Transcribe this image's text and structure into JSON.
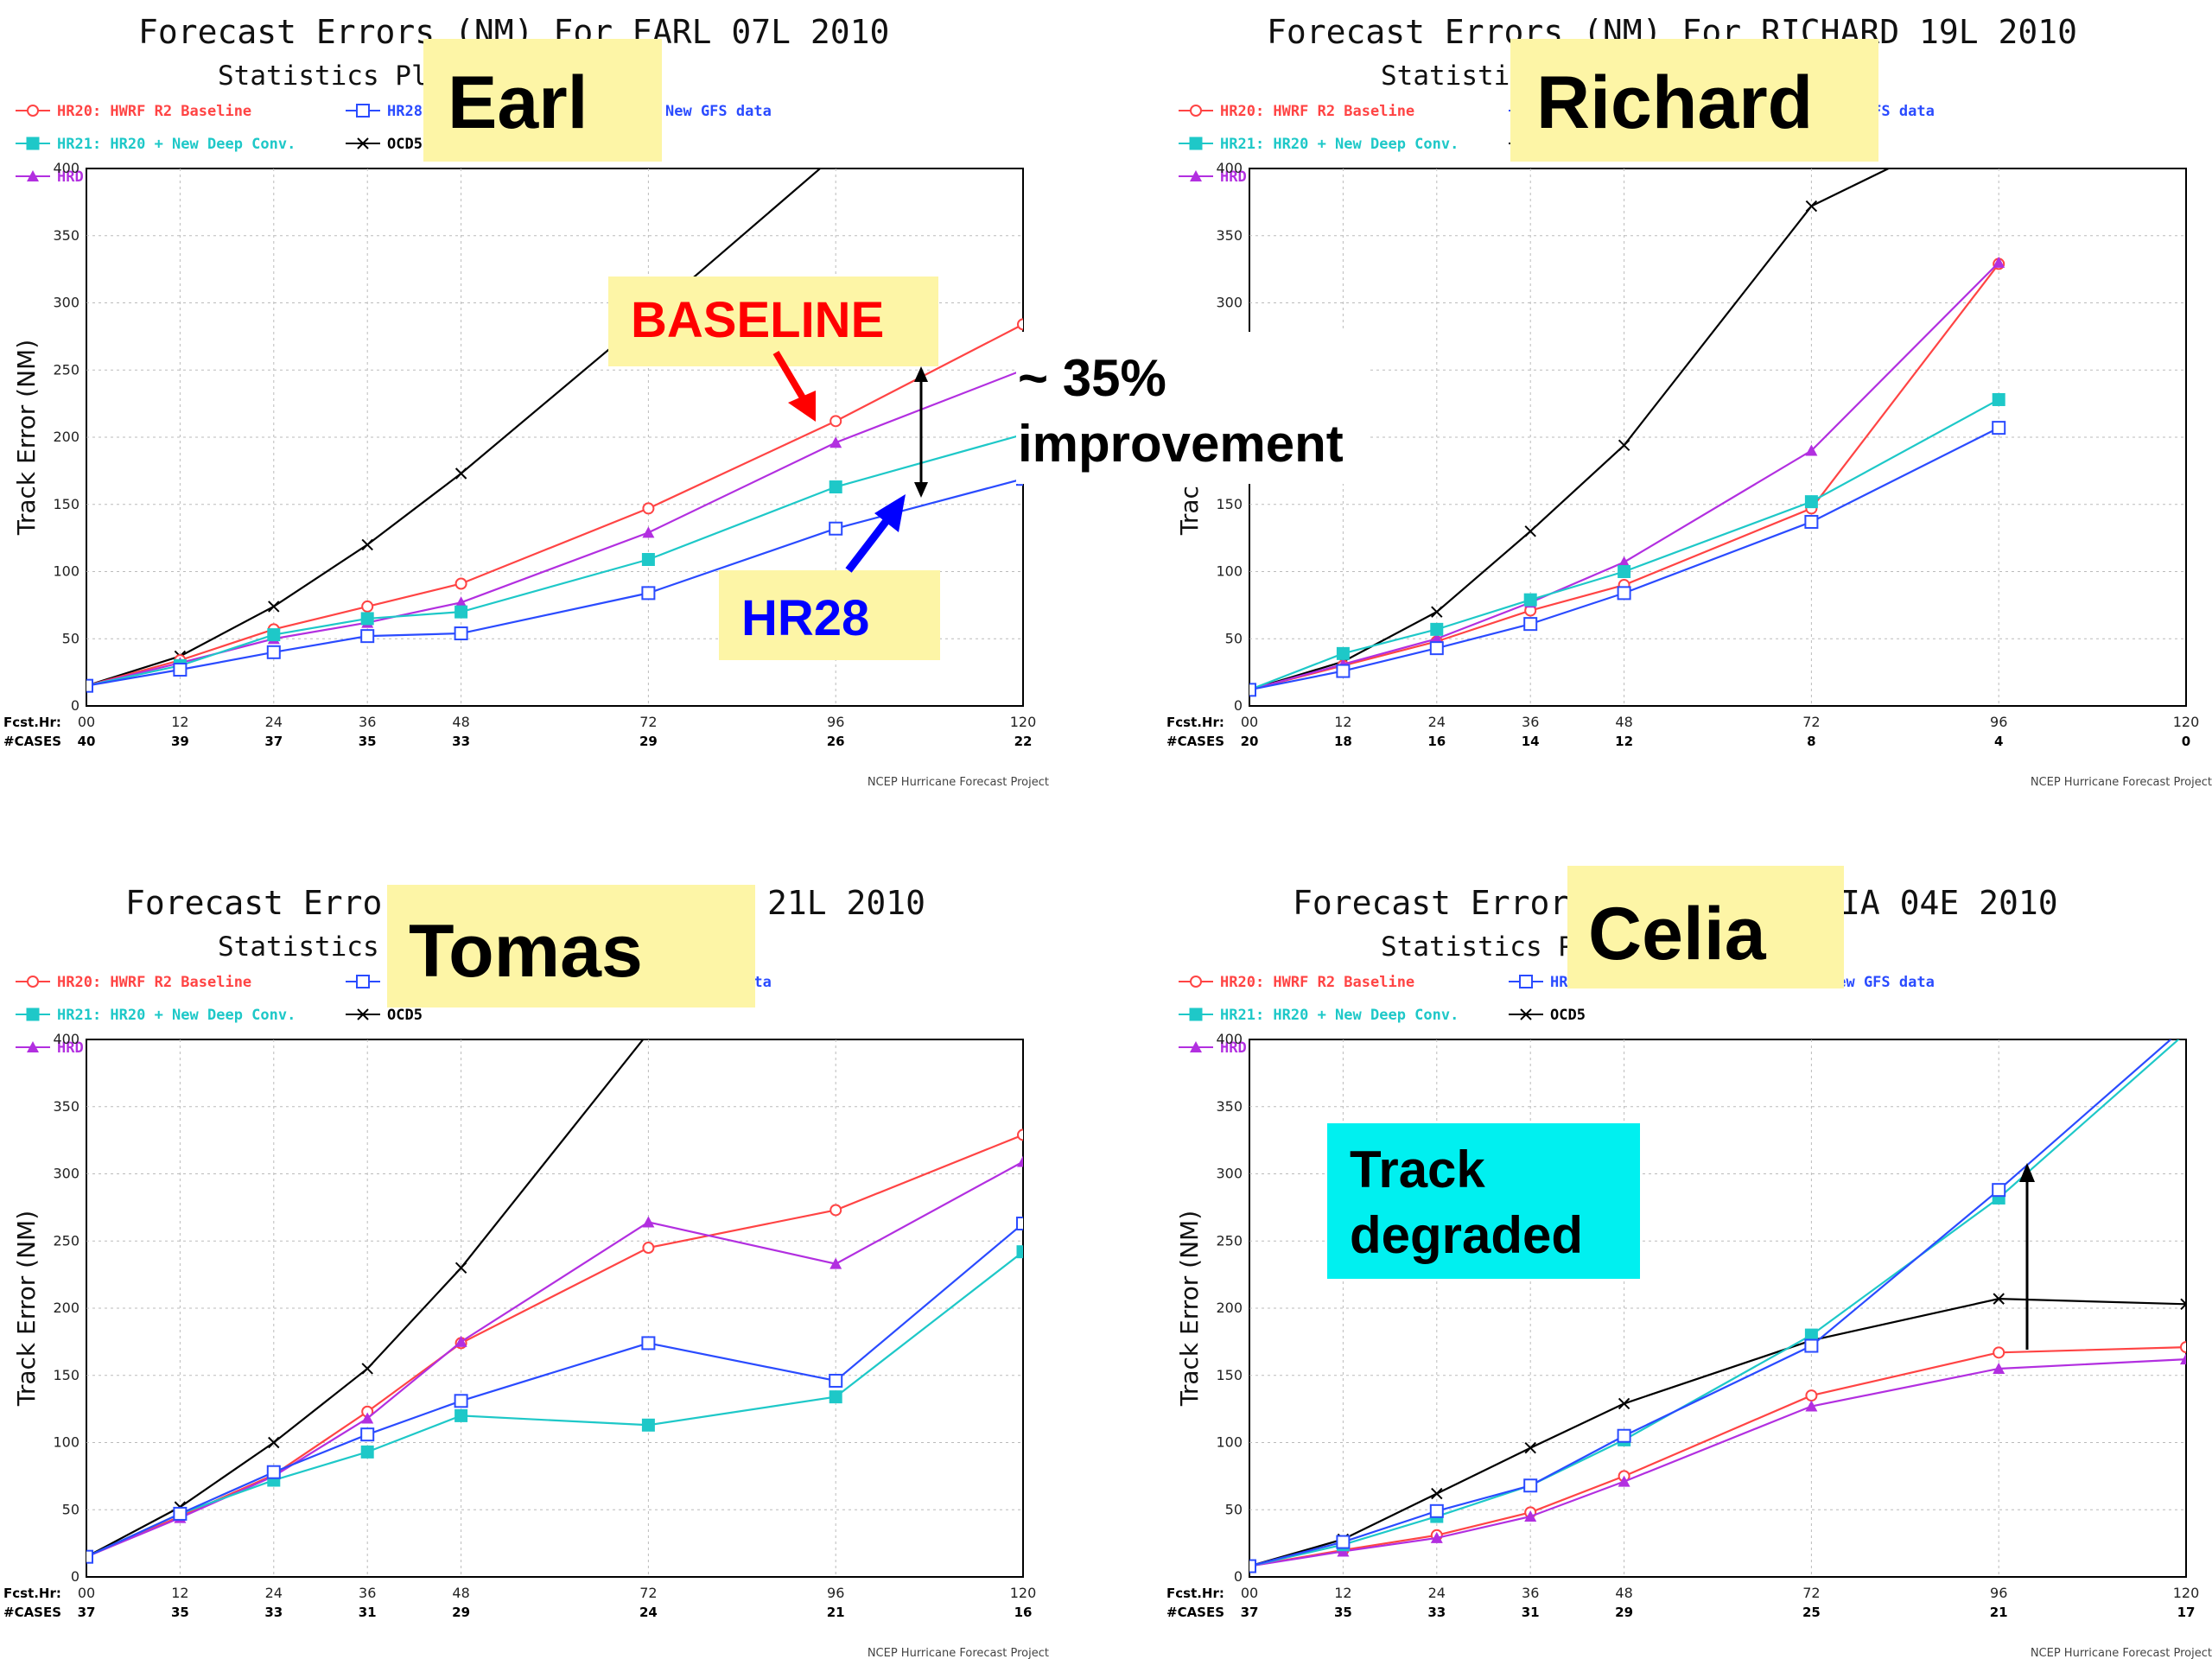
{
  "legend": [
    {
      "id": "hr20",
      "label": "HR20: HWRF R2 Baseline",
      "color": "#ff4444",
      "marker": "circle"
    },
    {
      "id": "hr28",
      "label": "HR28",
      "color": "#2a4bff",
      "marker": "square"
    },
    {
      "id": "hr21",
      "label": "HR21: HR20 + New Deep Conv.",
      "color": "#1ec8c8",
      "marker": "filled-square"
    },
    {
      "id": "ocd5",
      "label": "OCD5",
      "color": "#000000",
      "marker": "x"
    },
    {
      "id": "hrd",
      "label": "HRD: HR20 + New init",
      "color": "#b22fe0",
      "marker": "triangle"
    }
  ],
  "common": {
    "ylabel": "Track Error (NM)",
    "row1_label": "Fcst.Hr:",
    "row2_label": "#CASES",
    "footer": "NCEP Hurricane Forecast Project",
    "subtitle_partial": "Statistics Plots",
    "legend_partial": "New GFS data"
  },
  "chart_data": [
    {
      "type": "line",
      "title_left": "Forecast Errors (NM) For EARL 07L 2010",
      "subtitle": "Statistics Plots ... ntic Storms",
      "ylabel": "Track Error (NM)",
      "ylim": [
        0,
        400
      ],
      "grid": true,
      "x": [
        0,
        12,
        24,
        36,
        48,
        72,
        96,
        120
      ],
      "xticks": [
        "00",
        "12",
        "24",
        "36",
        "48",
        "72",
        "96",
        "120"
      ],
      "cases": [
        "40",
        "39",
        "37",
        "35",
        "33",
        "29",
        "26",
        "22"
      ],
      "series": [
        {
          "name": "OCD5",
          "values": [
            15,
            37,
            74,
            120,
            173,
            290,
            410,
            null
          ]
        },
        {
          "name": "HR20",
          "values": [
            15,
            34,
            57,
            74,
            91,
            147,
            212,
            284
          ]
        },
        {
          "name": "HRD",
          "values": [
            15,
            32,
            50,
            62,
            77,
            129,
            196,
            250
          ]
        },
        {
          "name": "HR21",
          "values": [
            15,
            30,
            53,
            65,
            70,
            109,
            163,
            202
          ]
        },
        {
          "name": "HR28",
          "values": [
            15,
            27,
            40,
            52,
            54,
            84,
            132,
            169
          ]
        }
      ]
    },
    {
      "type": "line",
      "title_left": "Forecast Errors (NM) For RICHARD 19L 2010",
      "subtitle": "Statistics ... Storms",
      "ylabel": "Track Error (NM)",
      "ylim": [
        0,
        400
      ],
      "grid": true,
      "x": [
        0,
        12,
        24,
        36,
        48,
        72,
        96,
        120
      ],
      "xticks": [
        "00",
        "12",
        "24",
        "36",
        "48",
        "72",
        "96",
        "120"
      ],
      "cases": [
        "20",
        "18",
        "16",
        "14",
        "12",
        "8",
        "4",
        "0"
      ],
      "series": [
        {
          "name": "OCD5",
          "values": [
            12,
            33,
            70,
            130,
            194,
            372,
            440,
            null
          ]
        },
        {
          "name": "HR20",
          "values": [
            12,
            30,
            48,
            71,
            90,
            147,
            329,
            null
          ]
        },
        {
          "name": "HRD",
          "values": [
            12,
            31,
            50,
            77,
            107,
            190,
            330,
            null
          ]
        },
        {
          "name": "HR21",
          "values": [
            12,
            39,
            57,
            79,
            100,
            152,
            228,
            null
          ]
        },
        {
          "name": "HR28",
          "values": [
            12,
            26,
            43,
            61,
            84,
            137,
            207,
            null
          ]
        }
      ]
    },
    {
      "type": "line",
      "title_left": "Forecast Error",
      "title_right": "21L 2010",
      "subtitle": "Statistics Pl ... orms",
      "ylabel": "Track Error (NM)",
      "ylim": [
        0,
        400
      ],
      "grid": true,
      "x": [
        0,
        12,
        24,
        36,
        48,
        72,
        96,
        120
      ],
      "xticks": [
        "00",
        "12",
        "24",
        "36",
        "48",
        "72",
        "96",
        "120"
      ],
      "cases": [
        "37",
        "35",
        "33",
        "31",
        "29",
        "24",
        "21",
        "16"
      ],
      "series": [
        {
          "name": "OCD5",
          "values": [
            15,
            52,
            100,
            155,
            230,
            405,
            null,
            null
          ]
        },
        {
          "name": "HR20",
          "values": [
            15,
            45,
            76,
            123,
            174,
            245,
            273,
            329
          ]
        },
        {
          "name": "HRD",
          "values": [
            15,
            44,
            75,
            118,
            175,
            264,
            233,
            309
          ]
        },
        {
          "name": "HR21",
          "values": [
            15,
            47,
            72,
            93,
            120,
            113,
            134,
            242
          ]
        },
        {
          "name": "HR28",
          "values": [
            15,
            47,
            78,
            106,
            131,
            174,
            146,
            263
          ]
        }
      ]
    },
    {
      "type": "line",
      "title_left": "Forecast Errors",
      "title_right": "IA 04E 2010",
      "subtitle": "Statistics Plots ... ific Storms",
      "ylabel": "Track Error (NM)",
      "ylim": [
        0,
        400
      ],
      "grid": true,
      "x": [
        0,
        12,
        24,
        36,
        48,
        72,
        96,
        120
      ],
      "xticks": [
        "00",
        "12",
        "24",
        "36",
        "48",
        "72",
        "96",
        "120"
      ],
      "cases": [
        "37",
        "35",
        "33",
        "31",
        "29",
        "25",
        "21",
        "17"
      ],
      "series": [
        {
          "name": "OCD5",
          "values": [
            8,
            28,
            62,
            96,
            129,
            176,
            207,
            203
          ]
        },
        {
          "name": "HR20",
          "values": [
            8,
            20,
            31,
            48,
            75,
            135,
            167,
            171
          ]
        },
        {
          "name": "HRD",
          "values": [
            8,
            19,
            29,
            45,
            71,
            127,
            155,
            162
          ]
        },
        {
          "name": "HR21",
          "values": [
            8,
            24,
            45,
            68,
            102,
            180,
            282,
            405
          ]
        },
        {
          "name": "HR28",
          "values": [
            8,
            26,
            49,
            68,
            105,
            172,
            288,
            410
          ]
        }
      ]
    }
  ],
  "annotations": {
    "earl_label": "Earl",
    "richard_label": "Richard",
    "tomas_label": "Tomas",
    "celia_label": "Celia",
    "baseline_label": "BASELINE",
    "hr28_label": "HR28",
    "improvement_line1": "~ 35%",
    "improvement_line2": "improvement",
    "degraded_line1": "Track",
    "degraded_line2": "degraded",
    "colors": {
      "highlight": "#fdf5a6",
      "cyan_box": "#00f0f0",
      "red": "#ff0000",
      "blue": "#0000ff"
    }
  }
}
